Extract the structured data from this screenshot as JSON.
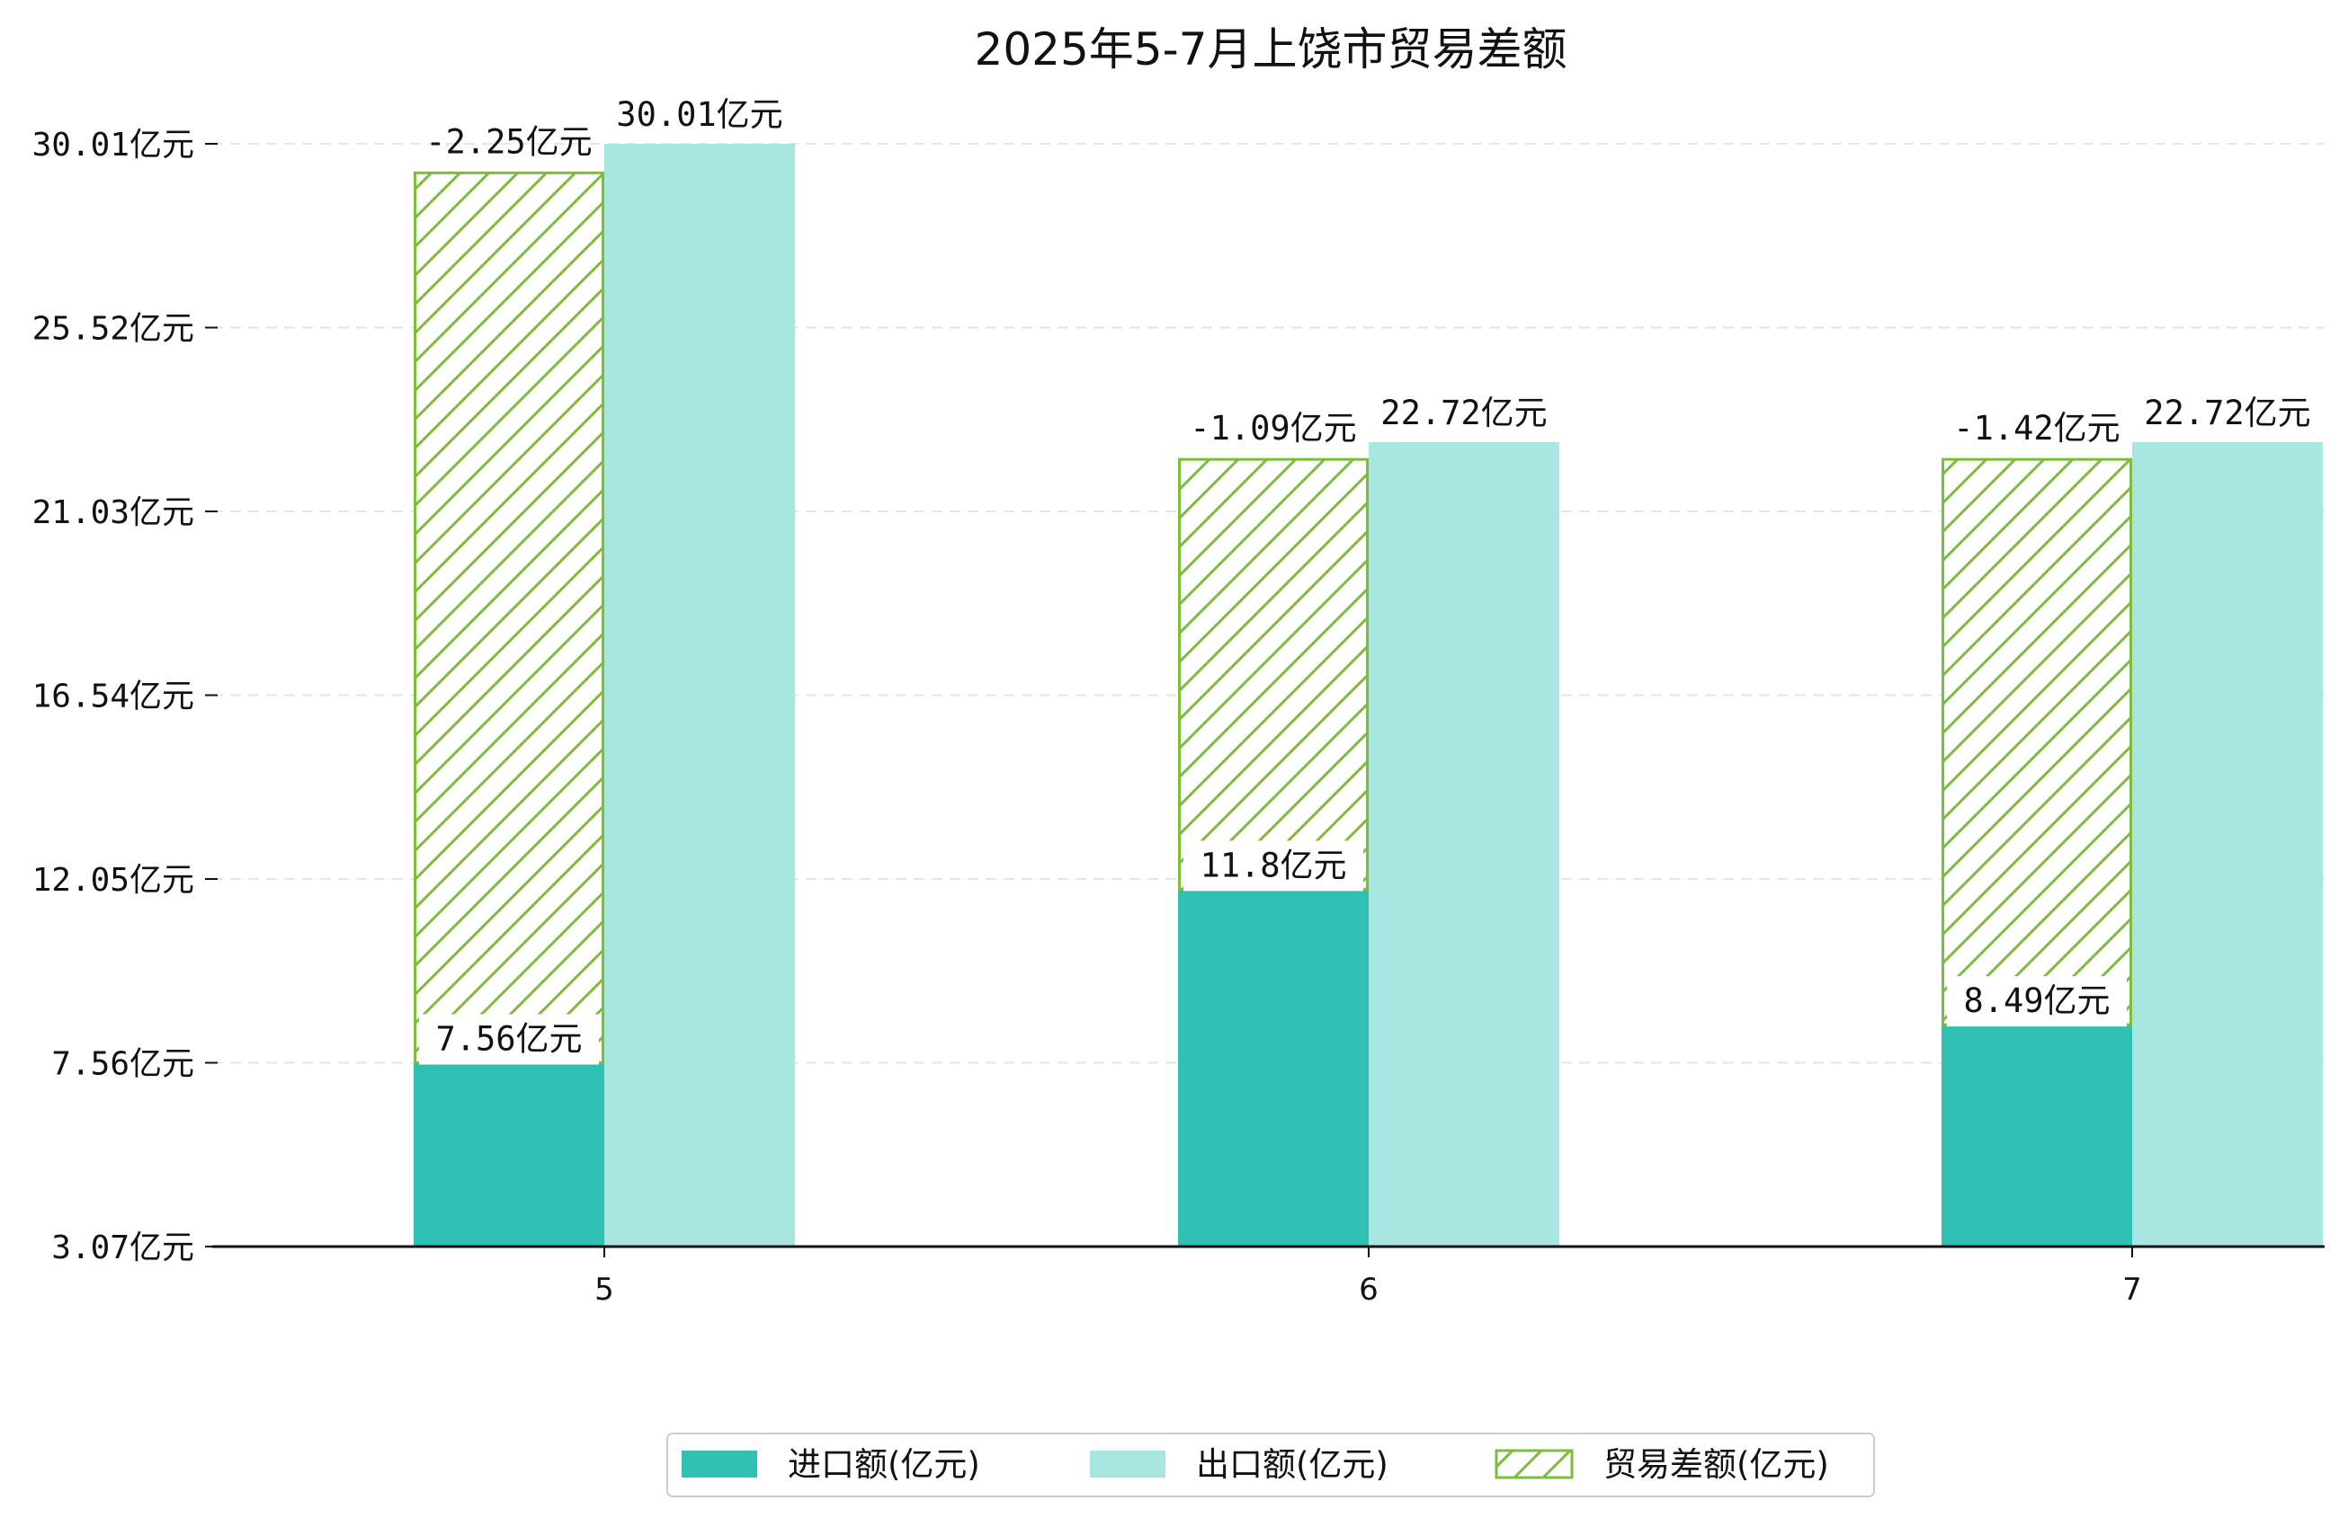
{
  "chart_data": {
    "type": "bar",
    "title": "2025年5-7月上饶市贸易差额",
    "xlabel": "",
    "ylabel": "",
    "categories": [
      "5",
      "6",
      "7"
    ],
    "ylim": [
      3.07,
      30.01
    ],
    "y_ticks": [
      3.07,
      7.56,
      12.05,
      16.54,
      21.03,
      25.52,
      30.01
    ],
    "y_tick_labels": [
      "3.07亿元",
      "7.56亿元",
      "12.05亿元",
      "16.54亿元",
      "21.03亿元",
      "25.52亿元",
      "30.01亿元"
    ],
    "series": [
      {
        "name": "进口额(亿元)",
        "key": "import",
        "color": "#2ec0b3",
        "values": [
          7.56,
          11.8,
          8.49
        ],
        "labels": [
          "7.56亿元",
          "11.8亿元",
          "8.49亿元"
        ]
      },
      {
        "name": "出口额(亿元)",
        "key": "export",
        "color": "#a8e6e1",
        "values": [
          30.01,
          22.72,
          22.72
        ],
        "labels": [
          "30.01亿元",
          "22.72亿元",
          "22.72亿元"
        ]
      },
      {
        "name": "贸易差额(亿元)",
        "key": "balance",
        "color": "#7dbd3c",
        "values": [
          -2.25,
          -1.09,
          -1.42
        ],
        "labels": [
          "-2.25亿元",
          "-1.09亿元",
          "-1.42亿元"
        ]
      }
    ],
    "balance_segment_tops": [
      29.3,
      22.3,
      22.3
    ],
    "grid": "y-dashed",
    "legend_position": "bottom-center"
  }
}
